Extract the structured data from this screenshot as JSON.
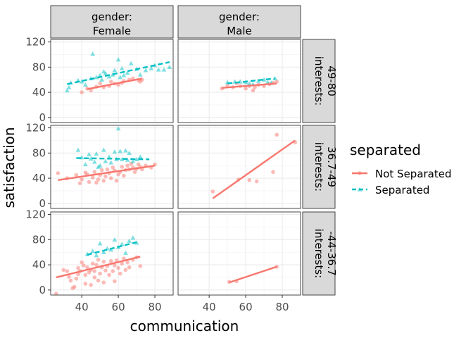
{
  "chart_data": {
    "type": "scatter",
    "facet": {
      "col_var": "gender",
      "row_var": "interests",
      "col_levels": [
        "gender:\nFemale",
        "gender:\nMale"
      ],
      "row_levels": [
        "interests:\n49-80",
        "interests:\n36.7-49",
        "interests:\n-44-36.7"
      ]
    },
    "xlabel": "communication",
    "ylabel": "satisfaction",
    "xlim": [
      23,
      90
    ],
    "ylim": [
      -8,
      124
    ],
    "xticks": [
      40,
      60,
      80
    ],
    "yticks": [
      0,
      40,
      80,
      120
    ],
    "legend": {
      "title": "separated",
      "position": "right",
      "entries": [
        {
          "name": "Not Separated",
          "color": "#F8766D",
          "shape": "circle",
          "linetype": "solid"
        },
        {
          "name": "Separated",
          "color": "#00BFC4",
          "shape": "triangle",
          "linetype": "dashed"
        }
      ]
    },
    "panels": [
      {
        "row": 0,
        "col": 0,
        "lines": [
          {
            "series": "Not Separated",
            "x": [
              43,
              73
            ],
            "y": [
              45,
              62
            ]
          },
          {
            "series": "Separated",
            "x": [
              32,
              88
            ],
            "y": [
              53,
              88
            ]
          }
        ],
        "points": {
          "Not Separated": [
            [
              40,
              40
            ],
            [
              43,
              46
            ],
            [
              45,
              43
            ],
            [
              48,
              49
            ],
            [
              50,
              54
            ],
            [
              52,
              48
            ],
            [
              55,
              50
            ],
            [
              56,
              57
            ],
            [
              58,
              54
            ],
            [
              60,
              52
            ],
            [
              62,
              55
            ],
            [
              63,
              58
            ],
            [
              66,
              60
            ],
            [
              68,
              62
            ],
            [
              71,
              59
            ],
            [
              72,
              57
            ],
            [
              73,
              60
            ]
          ],
          "Separated": [
            [
              32,
              43
            ],
            [
              33,
              48
            ],
            [
              34,
              55
            ],
            [
              38,
              59
            ],
            [
              40,
              57
            ],
            [
              42,
              52
            ],
            [
              45,
              62
            ],
            [
              46,
              101
            ],
            [
              48,
              64
            ],
            [
              50,
              67
            ],
            [
              51,
              60
            ],
            [
              52,
              73
            ],
            [
              53,
              70
            ],
            [
              55,
              65
            ],
            [
              57,
              68
            ],
            [
              58,
              75
            ],
            [
              60,
              92
            ],
            [
              61,
              64
            ],
            [
              62,
              78
            ],
            [
              63,
              67
            ],
            [
              65,
              71
            ],
            [
              67,
              86
            ],
            [
              70,
              77
            ],
            [
              72,
              68
            ],
            [
              75,
              75
            ],
            [
              78,
              78
            ],
            [
              80,
              83
            ],
            [
              82,
              76
            ],
            [
              85,
              76
            ],
            [
              88,
              80
            ]
          ]
        }
      },
      {
        "row": 0,
        "col": 1,
        "lines": [
          {
            "series": "Not Separated",
            "x": [
              47,
              77
            ],
            "y": [
              47,
              54
            ]
          },
          {
            "series": "Separated",
            "x": [
              50,
              76
            ],
            "y": [
              54,
              62
            ]
          }
        ],
        "points": {
          "Not Separated": [
            [
              47,
              46
            ],
            [
              50,
              50
            ],
            [
              53,
              48
            ],
            [
              55,
              54
            ],
            [
              57,
              50
            ],
            [
              60,
              46
            ],
            [
              62,
              50
            ],
            [
              64,
              43
            ],
            [
              65,
              48
            ],
            [
              67,
              52
            ],
            [
              70,
              50
            ],
            [
              73,
              53
            ],
            [
              75,
              55
            ],
            [
              77,
              57
            ]
          ],
          "Separated": [
            [
              50,
              56
            ],
            [
              54,
              57
            ],
            [
              57,
              57
            ],
            [
              60,
              56
            ],
            [
              62,
              54
            ],
            [
              64,
              53
            ],
            [
              67,
              58
            ],
            [
              70,
              60
            ],
            [
              72,
              56
            ],
            [
              74,
              55
            ],
            [
              76,
              62
            ]
          ]
        }
      },
      {
        "row": 1,
        "col": 0,
        "lines": [
          {
            "series": "Not Separated",
            "x": [
              27,
              80
            ],
            "y": [
              37,
              60
            ]
          },
          {
            "series": "Separated",
            "x": [
              37,
              77
            ],
            "y": [
              72,
              70
            ]
          }
        ],
        "points": {
          "Not Separated": [
            [
              27,
              48
            ],
            [
              32,
              40
            ],
            [
              37,
              45
            ],
            [
              39,
              32
            ],
            [
              40,
              38
            ],
            [
              42,
              49
            ],
            [
              43,
              46
            ],
            [
              44,
              34
            ],
            [
              46,
              41
            ],
            [
              47,
              50
            ],
            [
              48,
              33
            ],
            [
              49,
              38
            ],
            [
              50,
              45
            ],
            [
              51,
              53
            ],
            [
              52,
              36
            ],
            [
              53,
              43
            ],
            [
              54,
              54
            ],
            [
              55,
              48
            ],
            [
              56,
              40
            ],
            [
              57,
              57
            ],
            [
              58,
              52
            ],
            [
              59,
              36
            ],
            [
              60,
              46
            ],
            [
              61,
              50
            ],
            [
              62,
              58
            ],
            [
              63,
              44
            ],
            [
              64,
              53
            ],
            [
              65,
              60
            ],
            [
              66,
              54
            ],
            [
              67,
              63
            ],
            [
              68,
              57
            ],
            [
              69,
              50
            ],
            [
              70,
              55
            ],
            [
              71,
              62
            ],
            [
              72,
              58
            ],
            [
              73,
              54
            ],
            [
              75,
              60
            ],
            [
              78,
              57
            ],
            [
              80,
              62
            ]
          ],
          "Separated": [
            [
              38,
              85
            ],
            [
              40,
              73
            ],
            [
              42,
              62
            ],
            [
              44,
              78
            ],
            [
              45,
              71
            ],
            [
              47,
              66
            ],
            [
              48,
              79
            ],
            [
              49,
              58
            ],
            [
              50,
              60
            ],
            [
              52,
              85
            ],
            [
              53,
              67
            ],
            [
              55,
              74
            ],
            [
              56,
              65
            ],
            [
              58,
              82
            ],
            [
              59,
              70
            ],
            [
              60,
              119
            ],
            [
              61,
              83
            ],
            [
              62,
              70
            ],
            [
              64,
              84
            ],
            [
              65,
              69
            ],
            [
              66,
              80
            ],
            [
              68,
              67
            ],
            [
              70,
              70
            ],
            [
              72,
              74
            ]
          ]
        }
      },
      {
        "row": 1,
        "col": 1,
        "lines": [
          {
            "series": "Not Separated",
            "x": [
              42,
              87
            ],
            "y": [
              8,
              100
            ]
          }
        ],
        "points": {
          "Not Separated": [
            [
              42,
              19
            ],
            [
              56,
              38
            ],
            [
              62,
              37
            ],
            [
              66,
              35
            ],
            [
              75,
              50
            ],
            [
              77,
              109
            ],
            [
              87,
              97
            ]
          ],
          "Separated": []
        }
      },
      {
        "row": 2,
        "col": 0,
        "lines": [
          {
            "series": "Not Separated",
            "x": [
              26,
              72
            ],
            "y": [
              20,
              53
            ]
          },
          {
            "series": "Separated",
            "x": [
              43,
              70
            ],
            "y": [
              56,
              76
            ]
          }
        ],
        "points": {
          "Not Separated": [
            [
              26,
              -6
            ],
            [
              30,
              32
            ],
            [
              32,
              30
            ],
            [
              33,
              21
            ],
            [
              34,
              15
            ],
            [
              35,
              3
            ],
            [
              36,
              5
            ],
            [
              37,
              18
            ],
            [
              38,
              25
            ],
            [
              38,
              35
            ],
            [
              39,
              30
            ],
            [
              40,
              44
            ],
            [
              41,
              39
            ],
            [
              42,
              10
            ],
            [
              42,
              24
            ],
            [
              43,
              36
            ],
            [
              44,
              28
            ],
            [
              45,
              32
            ],
            [
              45,
              8
            ],
            [
              46,
              42
            ],
            [
              47,
              20
            ],
            [
              47,
              30
            ],
            [
              48,
              40
            ],
            [
              49,
              15
            ],
            [
              49,
              48
            ],
            [
              50,
              26
            ],
            [
              51,
              36
            ],
            [
              52,
              12
            ],
            [
              52,
              45
            ],
            [
              53,
              31
            ],
            [
              54,
              38
            ],
            [
              55,
              24
            ],
            [
              56,
              46
            ],
            [
              57,
              30
            ],
            [
              58,
              39
            ],
            [
              58,
              14
            ],
            [
              59,
              47
            ],
            [
              60,
              35
            ],
            [
              61,
              26
            ],
            [
              62,
              42
            ],
            [
              63,
              50
            ],
            [
              64,
              32
            ],
            [
              65,
              44
            ],
            [
              66,
              36
            ],
            [
              68,
              48
            ],
            [
              70,
              52
            ],
            [
              72,
              38
            ]
          ],
          "Separated": [
            [
              43,
              57
            ],
            [
              46,
              62
            ],
            [
              48,
              55
            ],
            [
              50,
              74
            ],
            [
              52,
              60
            ],
            [
              54,
              66
            ],
            [
              56,
              64
            ],
            [
              58,
              80
            ],
            [
              60,
              68
            ],
            [
              62,
              73
            ],
            [
              64,
              59
            ],
            [
              66,
              78
            ],
            [
              68,
              83
            ],
            [
              70,
              75
            ]
          ]
        }
      },
      {
        "row": 2,
        "col": 1,
        "lines": [
          {
            "series": "Not Separated",
            "x": [
              51,
              77
            ],
            "y": [
              12,
              37
            ]
          }
        ],
        "points": {
          "Not Separated": [
            [
              51,
              13
            ],
            [
              55,
              14
            ],
            [
              77,
              37
            ]
          ],
          "Separated": []
        }
      }
    ]
  }
}
